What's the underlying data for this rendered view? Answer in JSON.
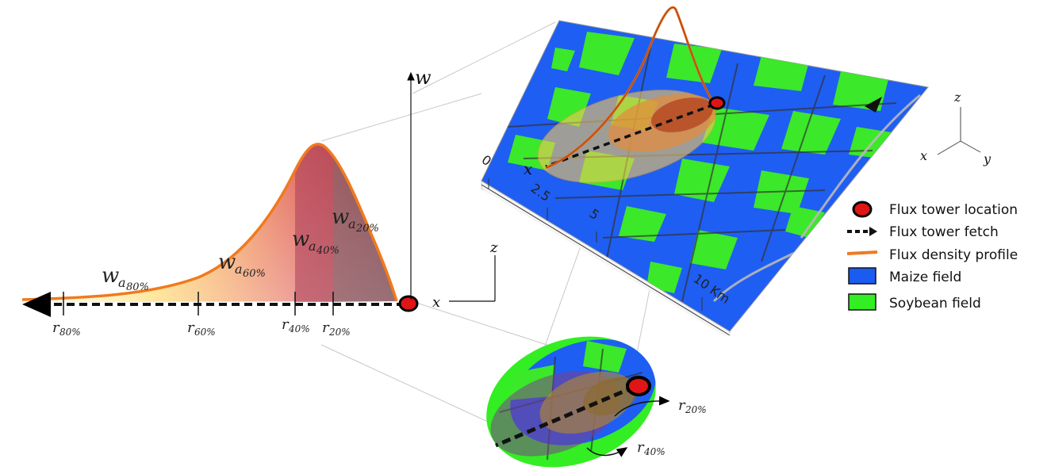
{
  "profile": {
    "axis_w": "w",
    "weight_labels": {
      "w80_base": "w",
      "w80_sub": "a",
      "w80_pct": "80%",
      "w60_base": "w",
      "w60_sub": "a",
      "w60_pct": "60%",
      "w40_base": "w",
      "w40_sub": "a",
      "w40_pct": "40%",
      "w20_base": "w",
      "w20_sub": "a",
      "w20_pct": "20%"
    },
    "radius_labels": {
      "r80": "r",
      "r80_pct": "80%",
      "r60": "r",
      "r60_pct": "60%",
      "r40": "r",
      "r40_pct": "40%",
      "r20": "r",
      "r20_pct": "20%"
    }
  },
  "axes2d": {
    "z": "z",
    "x": "x"
  },
  "map": {
    "scale_ticks": [
      "0",
      "2.5",
      "5",
      "10 Km"
    ],
    "x_label": "x"
  },
  "axes3d": {
    "z": "z",
    "x": "x",
    "y": "y"
  },
  "legend": {
    "items": [
      {
        "label": "Flux tower location",
        "icon": "tower-marker-icon"
      },
      {
        "label": "Flux tower fetch",
        "icon": "dashed-arrow-icon"
      },
      {
        "label": "Flux density profile",
        "icon": "orange-line-icon"
      },
      {
        "label": "Maize field",
        "icon": "blue-swatch-icon",
        "color": "#1a5cf0"
      },
      {
        "label": "Soybean field",
        "icon": "green-swatch-icon",
        "color": "#33ee22"
      }
    ]
  },
  "zoom": {
    "r20": "r",
    "r20_pct": "20%",
    "r40": "r",
    "r40_pct": "40%"
  }
}
